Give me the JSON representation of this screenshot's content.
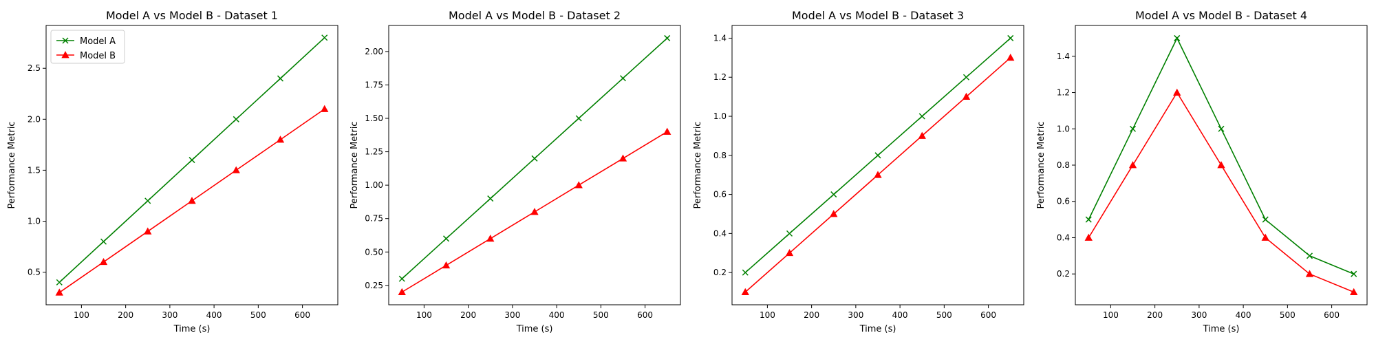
{
  "chart_data": [
    {
      "type": "line",
      "title": "Model A vs Model B - Dataset 1",
      "xlabel": "Time (s)",
      "ylabel": "Performance Metric",
      "xlim": [
        20,
        680
      ],
      "ylim": [
        0.18,
        2.92
      ],
      "xticks": [
        100,
        200,
        300,
        400,
        500,
        600
      ],
      "yticks": [
        0.5,
        1.0,
        1.5,
        2.0,
        2.5
      ],
      "ytick_labels": [
        "0.5",
        "1.0",
        "1.5",
        "2.0",
        "2.5"
      ],
      "grid": false,
      "legend": "top-left",
      "x": [
        50,
        150,
        250,
        350,
        450,
        550,
        650
      ],
      "series": [
        {
          "name": "Model A",
          "values": [
            0.4,
            0.8,
            1.2,
            1.6,
            2.0,
            2.4,
            2.8
          ],
          "color": "#008000",
          "marker": "x"
        },
        {
          "name": "Model B",
          "values": [
            0.3,
            0.6,
            0.9,
            1.2,
            1.5,
            1.8,
            2.1
          ],
          "color": "#ff0000",
          "marker": "triangle"
        }
      ]
    },
    {
      "type": "line",
      "title": "Model A vs Model B - Dataset 2",
      "xlabel": "Time (s)",
      "ylabel": "Performance Metric",
      "xlim": [
        20,
        680
      ],
      "ylim": [
        0.105,
        2.195
      ],
      "xticks": [
        100,
        200,
        300,
        400,
        500,
        600
      ],
      "yticks": [
        0.25,
        0.5,
        0.75,
        1.0,
        1.25,
        1.5,
        1.75,
        2.0
      ],
      "ytick_labels": [
        "0.25",
        "0.50",
        "0.75",
        "1.00",
        "1.25",
        "1.50",
        "1.75",
        "2.00"
      ],
      "grid": false,
      "legend": "none",
      "x": [
        50,
        150,
        250,
        350,
        450,
        550,
        650
      ],
      "series": [
        {
          "name": "Model A",
          "values": [
            0.3,
            0.6,
            0.9,
            1.2,
            1.5,
            1.8,
            2.1
          ],
          "color": "#008000",
          "marker": "x"
        },
        {
          "name": "Model B",
          "values": [
            0.2,
            0.4,
            0.6,
            0.8,
            1.0,
            1.2,
            1.4
          ],
          "color": "#ff0000",
          "marker": "triangle"
        }
      ]
    },
    {
      "type": "line",
      "title": "Model A vs Model B - Dataset 3",
      "xlabel": "Time (s)",
      "ylabel": "Performance Metric",
      "xlim": [
        20,
        680
      ],
      "ylim": [
        0.035,
        1.465
      ],
      "xticks": [
        100,
        200,
        300,
        400,
        500,
        600
      ],
      "yticks": [
        0.2,
        0.4,
        0.6,
        0.8,
        1.0,
        1.2,
        1.4
      ],
      "ytick_labels": [
        "0.2",
        "0.4",
        "0.6",
        "0.8",
        "1.0",
        "1.2",
        "1.4"
      ],
      "grid": false,
      "legend": "none",
      "x": [
        50,
        150,
        250,
        350,
        450,
        550,
        650
      ],
      "series": [
        {
          "name": "Model A",
          "values": [
            0.2,
            0.4,
            0.6,
            0.8,
            1.0,
            1.2,
            1.4
          ],
          "color": "#008000",
          "marker": "x"
        },
        {
          "name": "Model B",
          "values": [
            0.1,
            0.3,
            0.5,
            0.7,
            0.9,
            1.1,
            1.3
          ],
          "color": "#ff0000",
          "marker": "triangle"
        }
      ]
    },
    {
      "type": "line",
      "title": "Model A vs Model B - Dataset 4",
      "xlabel": "Time (s)",
      "ylabel": "Performance Metric",
      "xlim": [
        20,
        680
      ],
      "ylim": [
        0.03,
        1.57
      ],
      "xticks": [
        100,
        200,
        300,
        400,
        500,
        600
      ],
      "yticks": [
        0.2,
        0.4,
        0.6,
        0.8,
        1.0,
        1.2,
        1.4
      ],
      "ytick_labels": [
        "0.2",
        "0.4",
        "0.6",
        "0.8",
        "1.0",
        "1.2",
        "1.4"
      ],
      "grid": false,
      "legend": "none",
      "x": [
        50,
        150,
        250,
        350,
        450,
        550,
        650
      ],
      "series": [
        {
          "name": "Model A",
          "values": [
            0.5,
            1.0,
            1.5,
            1.0,
            0.5,
            0.3,
            0.2
          ],
          "color": "#008000",
          "marker": "x"
        },
        {
          "name": "Model B",
          "values": [
            0.4,
            0.8,
            1.2,
            0.8,
            0.4,
            0.2,
            0.1
          ],
          "color": "#ff0000",
          "marker": "triangle"
        }
      ]
    }
  ]
}
